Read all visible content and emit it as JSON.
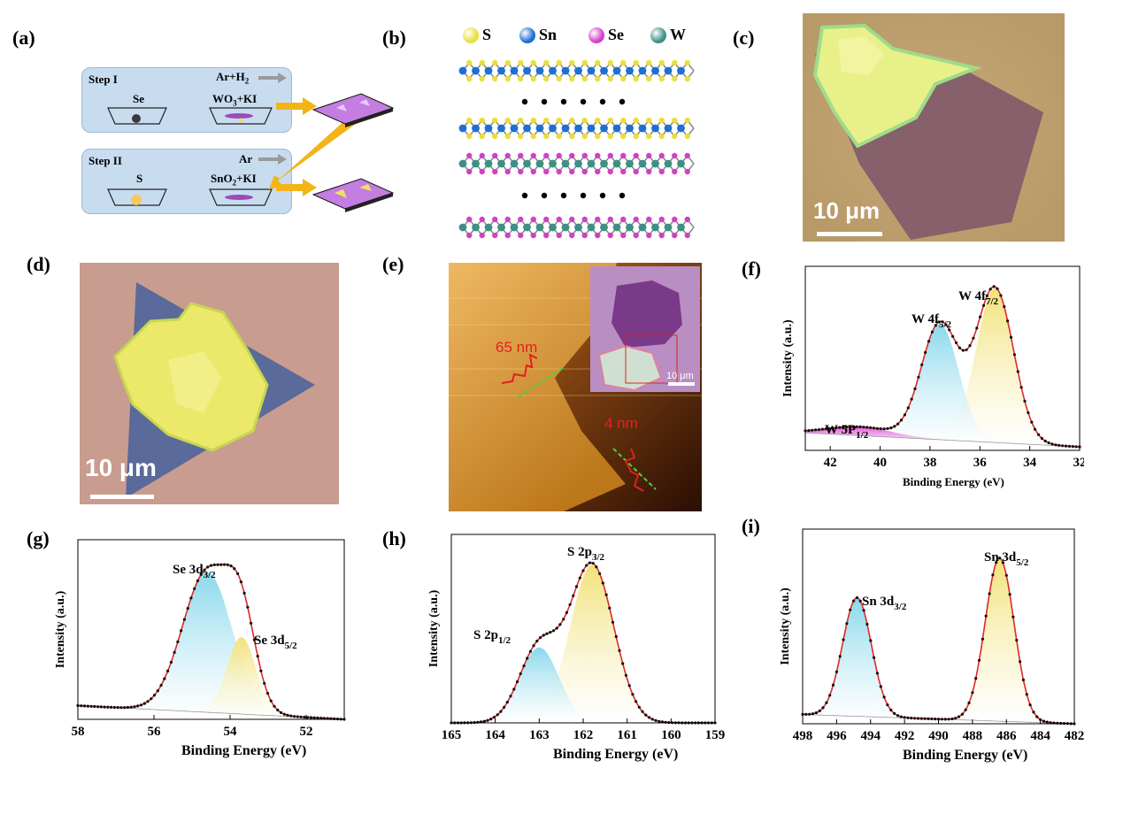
{
  "labels": {
    "a": "(a)",
    "b": "(b)",
    "c": "(c)",
    "d": "(d)",
    "e": "(e)",
    "f": "(f)",
    "g": "(g)",
    "h": "(h)",
    "i": "(i)"
  },
  "panel_a": {
    "step1": "Step I",
    "step1_gas": "Ar+H",
    "step1_gas_sub": "2",
    "step1_left": "Se",
    "step1_right": "WO",
    "step1_right_sub": "3",
    "step1_right_tail": "+KI",
    "step2": "Step II",
    "step2_gas": "Ar",
    "step2_left": "S",
    "step2_right": "SnO",
    "step2_right_sub": "2",
    "step2_right_tail": "+KI"
  },
  "panel_b": {
    "legend": [
      {
        "label": "S",
        "color": "#e8e03a"
      },
      {
        "label": "Sn",
        "color": "#1e6fd0"
      },
      {
        "label": "Se",
        "color": "#d43fc8"
      },
      {
        "label": "W",
        "color": "#3f8f86"
      }
    ]
  },
  "panel_c": {
    "scale": "10 μm"
  },
  "panel_d": {
    "scale": "10 μm"
  },
  "panel_e": {
    "h1": "65 nm",
    "h2": "4 nm",
    "inset_scale": "10 μm"
  },
  "chart_data": [
    {
      "id": "f",
      "type": "line",
      "xlabel": "Binding Energy (eV)",
      "ylabel": "Intensity (a.u.)",
      "xlim": [
        43,
        32
      ],
      "xticks": [
        42,
        40,
        38,
        36,
        34,
        32
      ],
      "annotations": [
        {
          "text": "W 4f",
          "sub": "7/2"
        },
        {
          "text": "W 4f",
          "sub": "5/2"
        },
        {
          "text": "W 5P",
          "sub": "1/2"
        }
      ],
      "peaks": [
        {
          "name": "W 4f7/2",
          "center": 35.4,
          "height": 0.88,
          "width": 0.75,
          "color": "#f2e27a"
        },
        {
          "name": "W 4f5/2",
          "center": 37.6,
          "height": 0.66,
          "width": 0.75,
          "color": "#8ad8ec"
        },
        {
          "name": "W 5P1/2",
          "center": 40.8,
          "height": 0.05,
          "width": 1.3,
          "color": "#e05ad8"
        }
      ],
      "baseline": [
        0.1,
        0.02
      ]
    },
    {
      "id": "g",
      "type": "line",
      "xlabel": "Binding Energy (eV)",
      "ylabel": "Intensity (a.u.)",
      "xlim": [
        58,
        51
      ],
      "xticks": [
        58,
        56,
        54,
        52
      ],
      "annotations": [
        {
          "text": "Se 3d",
          "sub": "3/2"
        },
        {
          "text": "Se 3d",
          "sub": "5/2"
        }
      ],
      "peaks": [
        {
          "name": "Se 3d3/2",
          "center": 54.6,
          "height": 0.82,
          "width": 0.65,
          "color": "#8ad8ec"
        },
        {
          "name": "Se 3d5/2",
          "center": 53.7,
          "height": 0.45,
          "width": 0.38,
          "color": "#f2e27a"
        }
      ],
      "baseline": [
        0.08,
        0.0
      ]
    },
    {
      "id": "h",
      "type": "line",
      "xlabel": "Binding Energy (eV)",
      "ylabel": "Intensity (a.u.)",
      "xlim": [
        165,
        159
      ],
      "xticks": [
        165,
        164,
        163,
        162,
        161,
        160,
        159
      ],
      "annotations": [
        {
          "text": "S 2p",
          "sub": "3/2"
        },
        {
          "text": "S 2p",
          "sub": "1/2"
        }
      ],
      "peaks": [
        {
          "name": "S 2p3/2",
          "center": 161.8,
          "height": 0.88,
          "width": 0.5,
          "color": "#f2e27a"
        },
        {
          "name": "S 2p1/2",
          "center": 163.0,
          "height": 0.42,
          "width": 0.45,
          "color": "#8ad8ec"
        }
      ],
      "baseline": [
        0.0,
        0.0
      ]
    },
    {
      "id": "i",
      "type": "line",
      "xlabel": "Binding Energy (eV)",
      "ylabel": "Intensity (a.u.)",
      "xlim": [
        498,
        482
      ],
      "xticks": [
        498,
        496,
        494,
        492,
        490,
        488,
        486,
        484,
        482
      ],
      "annotations": [
        {
          "text": "Sn 3d",
          "sub": "5/2"
        },
        {
          "text": "Sn 3d",
          "sub": "3/2"
        }
      ],
      "peaks": [
        {
          "name": "Sn 3d5/2",
          "center": 486.4,
          "height": 0.88,
          "width": 0.85,
          "color": "#f2e27a"
        },
        {
          "name": "Sn 3d3/2",
          "center": 494.8,
          "height": 0.64,
          "width": 0.85,
          "color": "#8ad8ec"
        }
      ],
      "baseline": [
        0.05,
        0.0
      ]
    }
  ]
}
